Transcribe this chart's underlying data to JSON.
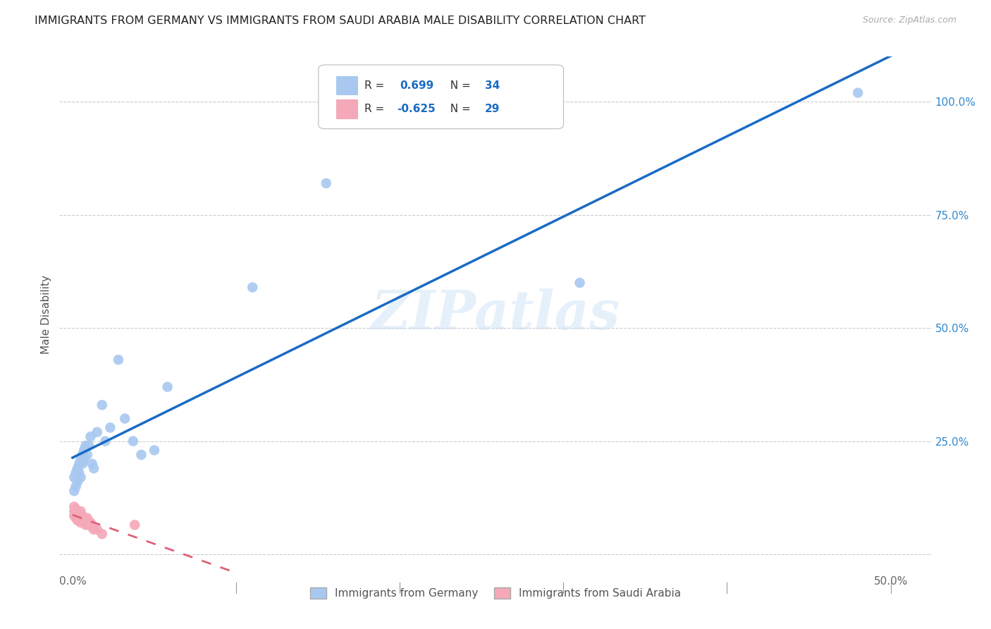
{
  "title": "IMMIGRANTS FROM GERMANY VS IMMIGRANTS FROM SAUDI ARABIA MALE DISABILITY CORRELATION CHART",
  "source": "Source: ZipAtlas.com",
  "ylabel": "Male Disability",
  "xlim": [
    -0.008,
    0.525
  ],
  "ylim": [
    -0.04,
    1.1
  ],
  "germany_color": "#a8c8f0",
  "saudi_color": "#f4a8b8",
  "germany_line_color": "#1a6bc4",
  "saudi_line_color": "#e0607a",
  "R_germany": 0.699,
  "N_germany": 34,
  "R_saudi": -0.625,
  "N_saudi": 29,
  "germany_x": [
    0.001,
    0.001,
    0.002,
    0.002,
    0.003,
    0.003,
    0.004,
    0.004,
    0.005,
    0.005,
    0.006,
    0.006,
    0.007,
    0.007,
    0.008,
    0.009,
    0.01,
    0.011,
    0.012,
    0.013,
    0.015,
    0.018,
    0.02,
    0.023,
    0.028,
    0.032,
    0.037,
    0.042,
    0.05,
    0.058,
    0.11,
    0.155,
    0.31,
    0.48
  ],
  "germany_y": [
    0.14,
    0.17,
    0.15,
    0.18,
    0.16,
    0.19,
    0.18,
    0.2,
    0.17,
    0.21,
    0.2,
    0.22,
    0.21,
    0.23,
    0.24,
    0.22,
    0.24,
    0.26,
    0.2,
    0.19,
    0.27,
    0.33,
    0.25,
    0.28,
    0.43,
    0.3,
    0.25,
    0.22,
    0.23,
    0.37,
    0.59,
    0.82,
    0.6,
    1.02
  ],
  "saudi_x": [
    0.001,
    0.001,
    0.001,
    0.002,
    0.002,
    0.002,
    0.003,
    0.003,
    0.003,
    0.004,
    0.004,
    0.005,
    0.005,
    0.005,
    0.006,
    0.006,
    0.007,
    0.007,
    0.008,
    0.008,
    0.009,
    0.009,
    0.01,
    0.011,
    0.012,
    0.013,
    0.015,
    0.018,
    0.038
  ],
  "saudi_y": [
    0.085,
    0.095,
    0.105,
    0.08,
    0.09,
    0.1,
    0.085,
    0.095,
    0.075,
    0.08,
    0.09,
    0.085,
    0.07,
    0.095,
    0.075,
    0.085,
    0.07,
    0.08,
    0.065,
    0.075,
    0.07,
    0.08,
    0.065,
    0.07,
    0.06,
    0.055,
    0.055,
    0.045,
    0.065
  ],
  "legend_label_germany": "Immigrants from Germany",
  "legend_label_saudi": "Immigrants from Saudi Arabia",
  "watermark": "ZIPatlas",
  "background_color": "#ffffff",
  "grid_color": "#cccccc",
  "x_tick_positions": [
    0.0,
    0.1,
    0.2,
    0.3,
    0.4,
    0.5
  ],
  "x_tick_labels": [
    "0.0%",
    "",
    "",
    "",
    "",
    "50.0%"
  ],
  "y_tick_positions": [
    0.0,
    0.25,
    0.5,
    0.75,
    1.0
  ],
  "y_right_labels": [
    "",
    "25.0%",
    "50.0%",
    "75.0%",
    "100.0%"
  ]
}
